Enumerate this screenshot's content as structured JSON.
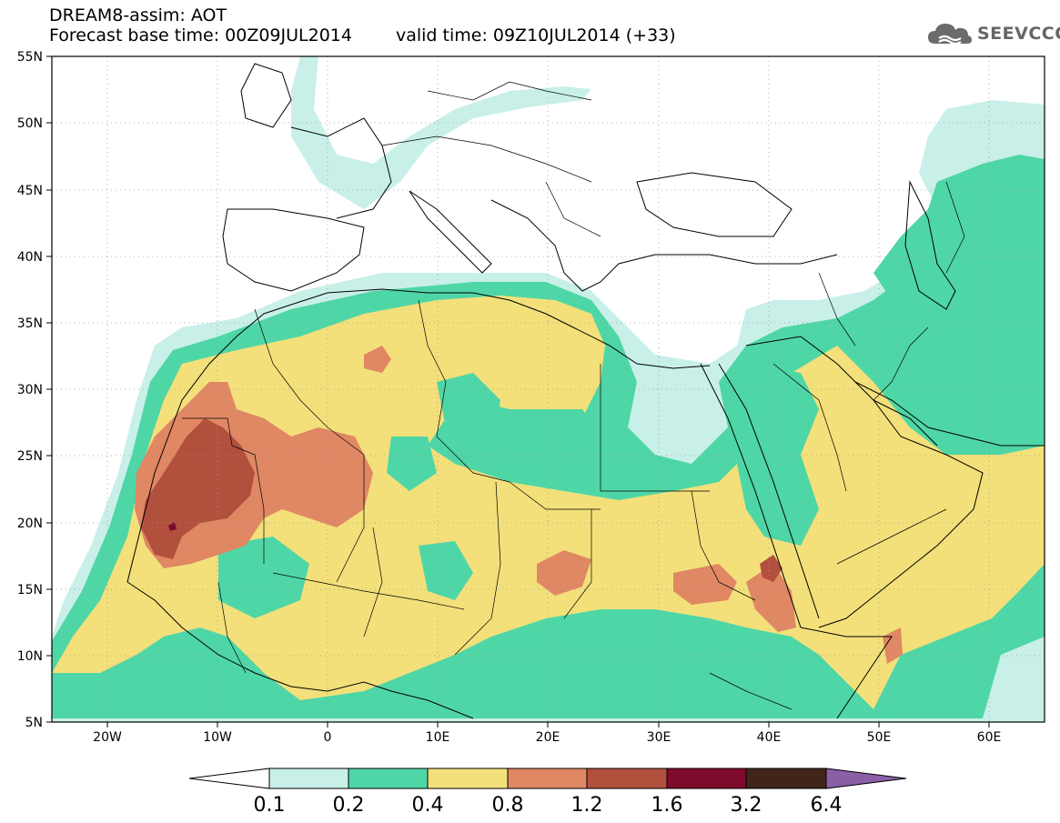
{
  "header": {
    "title": "DREAM8-assim: AOT",
    "base_time": "Forecast base time: 00Z09JUL2014",
    "valid_time": "valid time: 09Z10JUL2014 (+33)"
  },
  "logo": {
    "text": "SEEVCCC",
    "icon": "cloud-icon"
  },
  "map": {
    "lat_labels": [
      "55N",
      "50N",
      "45N",
      "40N",
      "35N",
      "30N",
      "25N",
      "20N",
      "15N",
      "10N",
      "5N"
    ],
    "lon_labels": [
      "20W",
      "10W",
      "0",
      "10E",
      "20E",
      "30E",
      "40E",
      "50E",
      "60E"
    ],
    "lon_range": [
      -25,
      65
    ],
    "lat_range": [
      5,
      55
    ]
  },
  "colorbar": {
    "labels": [
      "0.1",
      "0.2",
      "0.4",
      "0.8",
      "1.2",
      "1.6",
      "3.2",
      "6.4"
    ],
    "colors": [
      "#ffffff",
      "#c8f0e8",
      "#4fd6a6",
      "#f3e07a",
      "#e08764",
      "#b2503e",
      "#7e0a2c",
      "#402518",
      "#8a5fa6"
    ]
  }
}
